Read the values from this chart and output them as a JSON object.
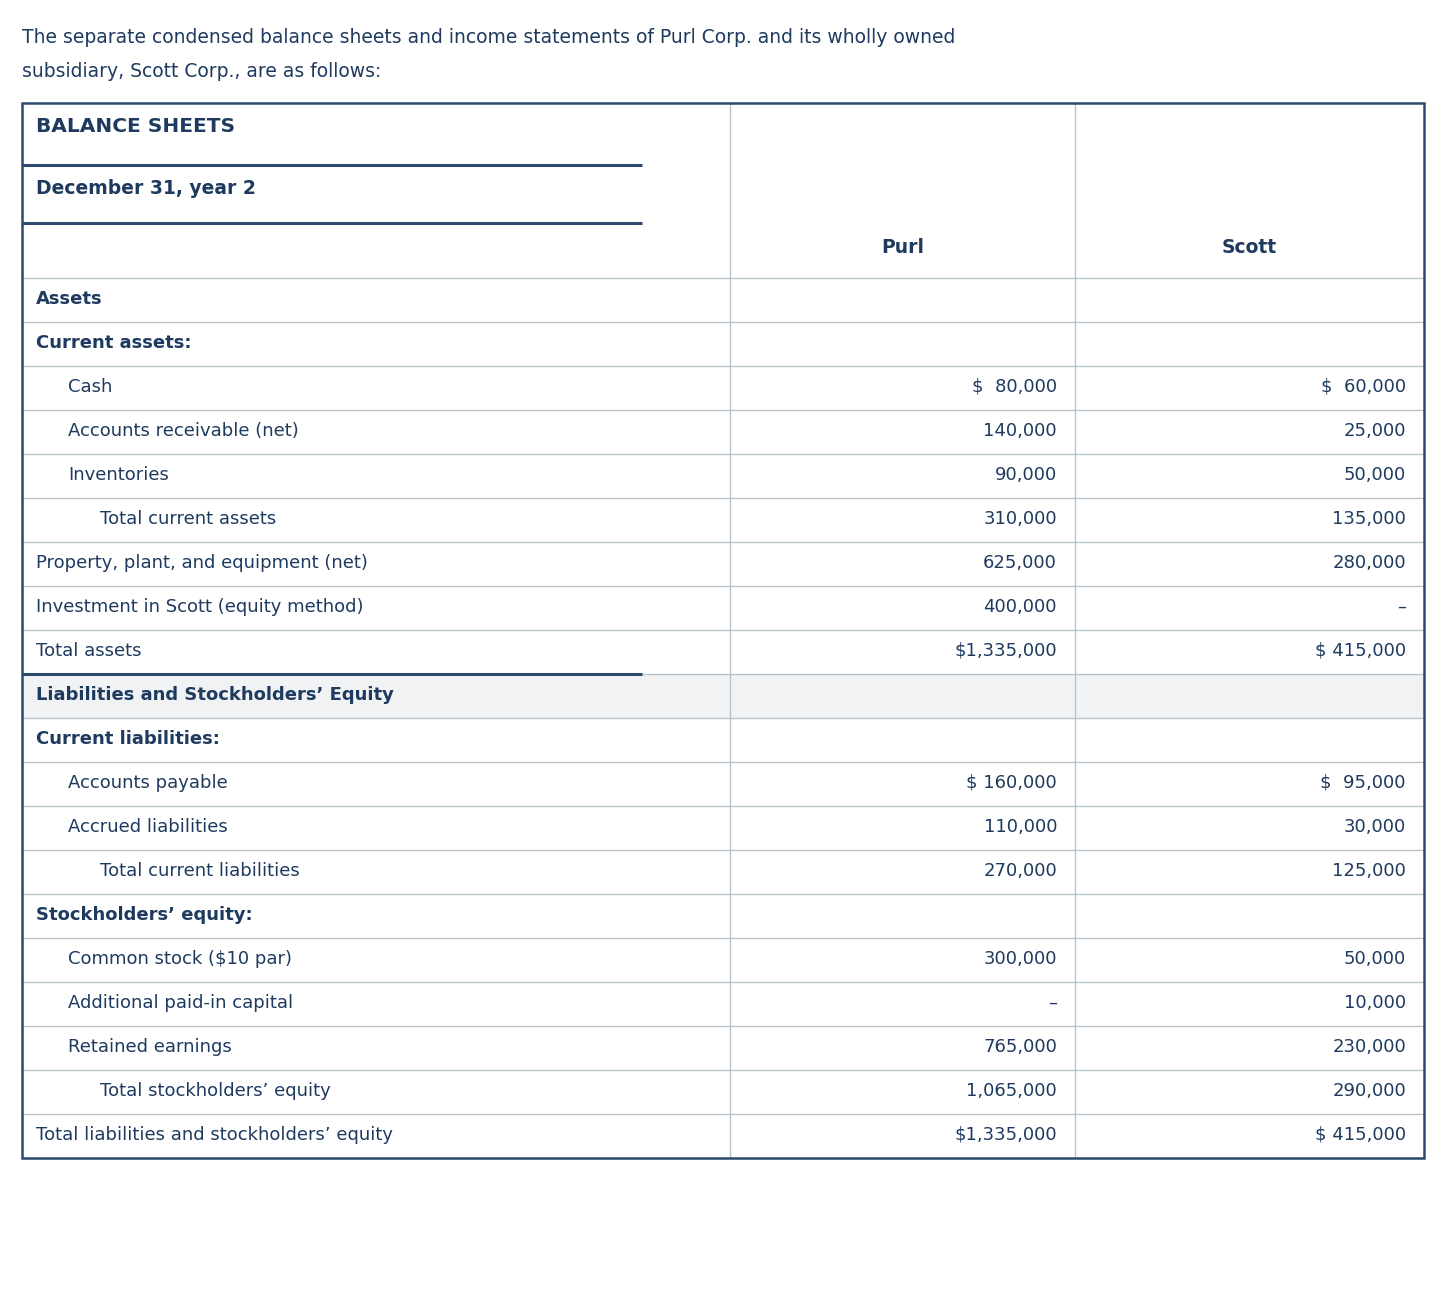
{
  "intro_line1": "The separate condensed balance sheets and income statements of Purl Corp. and its wholly owned",
  "intro_line2": "subsidiary, Scott Corp., are as follows:",
  "section1_title": "BALANCE SHEETS",
  "section1_subtitle": "December 31, year 2",
  "rows": [
    {
      "label": "Assets",
      "purl": "",
      "scott": "",
      "style": "bold_left",
      "indent": 0
    },
    {
      "label": "Current assets:",
      "purl": "",
      "scott": "",
      "style": "bold_left",
      "indent": 0
    },
    {
      "label": "Cash",
      "purl": "$  80,000",
      "scott": "$  60,000",
      "style": "normal",
      "indent": 1
    },
    {
      "label": "Accounts receivable (net)",
      "purl": "140,000",
      "scott": "25,000",
      "style": "normal",
      "indent": 1
    },
    {
      "label": "Inventories",
      "purl": "90,000",
      "scott": "50,000",
      "style": "normal",
      "indent": 1
    },
    {
      "label": "Total current assets",
      "purl": "310,000",
      "scott": "135,000",
      "style": "total_indent",
      "indent": 2
    },
    {
      "label": "Property, plant, and equipment (net)",
      "purl": "625,000",
      "scott": "280,000",
      "style": "normal",
      "indent": 0
    },
    {
      "label": "Investment in Scott (equity method)",
      "purl": "400,000",
      "scott": "–",
      "style": "normal",
      "indent": 0
    },
    {
      "label": "Total assets",
      "purl": "$1,335,000",
      "scott": "$ 415,000",
      "style": "normal",
      "indent": 0
    },
    {
      "label": "Liabilities and Stockholders’ Equity",
      "purl": "",
      "scott": "",
      "style": "bold_section",
      "indent": 0
    },
    {
      "label": "Current liabilities:",
      "purl": "",
      "scott": "",
      "style": "bold_left",
      "indent": 0
    },
    {
      "label": "Accounts payable",
      "purl": "$ 160,000",
      "scott": "$  95,000",
      "style": "normal",
      "indent": 1
    },
    {
      "label": "Accrued liabilities",
      "purl": "110,000",
      "scott": "30,000",
      "style": "normal",
      "indent": 1
    },
    {
      "label": "Total current liabilities",
      "purl": "270,000",
      "scott": "125,000",
      "style": "total_indent",
      "indent": 2
    },
    {
      "label": "Stockholders’ equity:",
      "purl": "",
      "scott": "",
      "style": "bold_left",
      "indent": 0
    },
    {
      "label": "Common stock ($10 par)",
      "purl": "300,000",
      "scott": "50,000",
      "style": "normal",
      "indent": 1
    },
    {
      "label": "Additional paid-in capital",
      "purl": "–",
      "scott": "10,000",
      "style": "normal",
      "indent": 1
    },
    {
      "label": "Retained earnings",
      "purl": "765,000",
      "scott": "230,000",
      "style": "normal",
      "indent": 1
    },
    {
      "label": "Total stockholders’ equity",
      "purl": "1,065,000",
      "scott": "290,000",
      "style": "total_indent",
      "indent": 2
    },
    {
      "label": "Total liabilities and stockholders’ equity",
      "purl": "$1,335,000",
      "scott": "$ 415,000",
      "style": "normal",
      "indent": 0
    }
  ],
  "text_color": "#1e3a5f",
  "border_color": "#2c4a6e",
  "line_color_dark": "#2c4a6e",
  "line_color_light": "#b8c4cc",
  "bg_white": "#ffffff",
  "bg_section": "#f0f2f4"
}
